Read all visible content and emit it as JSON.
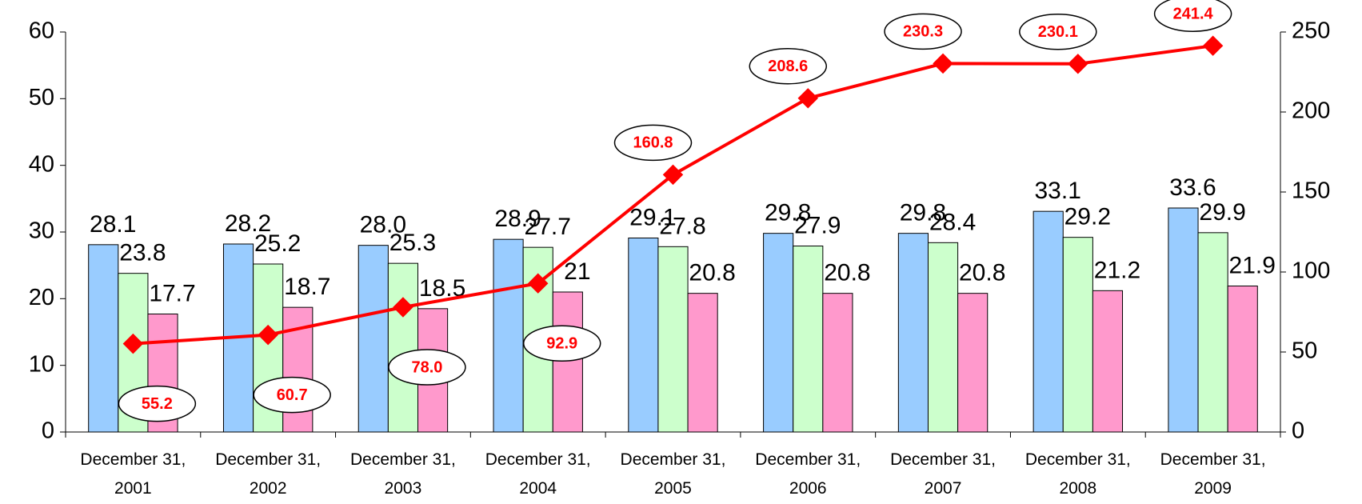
{
  "chart_data": {
    "type": "bar",
    "categories": [
      "December 31, 2001",
      "December 31, 2002",
      "December 31, 2003",
      "December 31, 2004",
      "December 31, 2005",
      "December 31, 2006",
      "December 31, 2007",
      "December 31, 2008",
      "December 31, 2009"
    ],
    "series": [
      {
        "color": "#99ccff",
        "values": [
          28.1,
          28.2,
          28.0,
          28.9,
          29.1,
          29.8,
          29.8,
          33.1,
          33.6
        ],
        "value_labels": [
          "28.1",
          "28.2",
          "28.0",
          "28.9",
          "29.1",
          "29.8",
          "29.8",
          "33.1",
          "33.6"
        ]
      },
      {
        "color": "#ccffcc",
        "values": [
          23.8,
          25.2,
          25.3,
          27.7,
          27.8,
          27.9,
          28.4,
          29.2,
          29.9
        ],
        "value_labels": [
          "23.8",
          "25.2",
          "25.3",
          "27.7",
          "27.8",
          "27.9",
          "28.4",
          "29.2",
          "29.9"
        ]
      },
      {
        "color": "#ff99cc",
        "values": [
          17.7,
          18.7,
          18.5,
          21,
          20.8,
          20.8,
          20.8,
          21.2,
          21.9
        ],
        "value_labels": [
          "17.7",
          "18.7",
          "18.5",
          "21",
          "20.8",
          "20.8",
          "20.8",
          "21.2",
          "21.9"
        ]
      },
      {
        "color": "#ff0000",
        "axis": "y2",
        "type": "line",
        "values": [
          55.2,
          60.7,
          78.0,
          92.9,
          160.8,
          208.6,
          230.3,
          230.1,
          241.4
        ],
        "value_labels": [
          "55.2",
          "60.7",
          "78.0",
          "92.9",
          "160.8",
          "208.6",
          "230.3",
          "230.1",
          "241.4"
        ]
      }
    ],
    "ylim": [
      0,
      60
    ],
    "yticks": [
      0,
      10,
      20,
      30,
      40,
      50,
      60
    ],
    "y2lim": [
      0,
      250
    ],
    "y2ticks": [
      0,
      50,
      100,
      150,
      200,
      250
    ],
    "grid": false
  }
}
